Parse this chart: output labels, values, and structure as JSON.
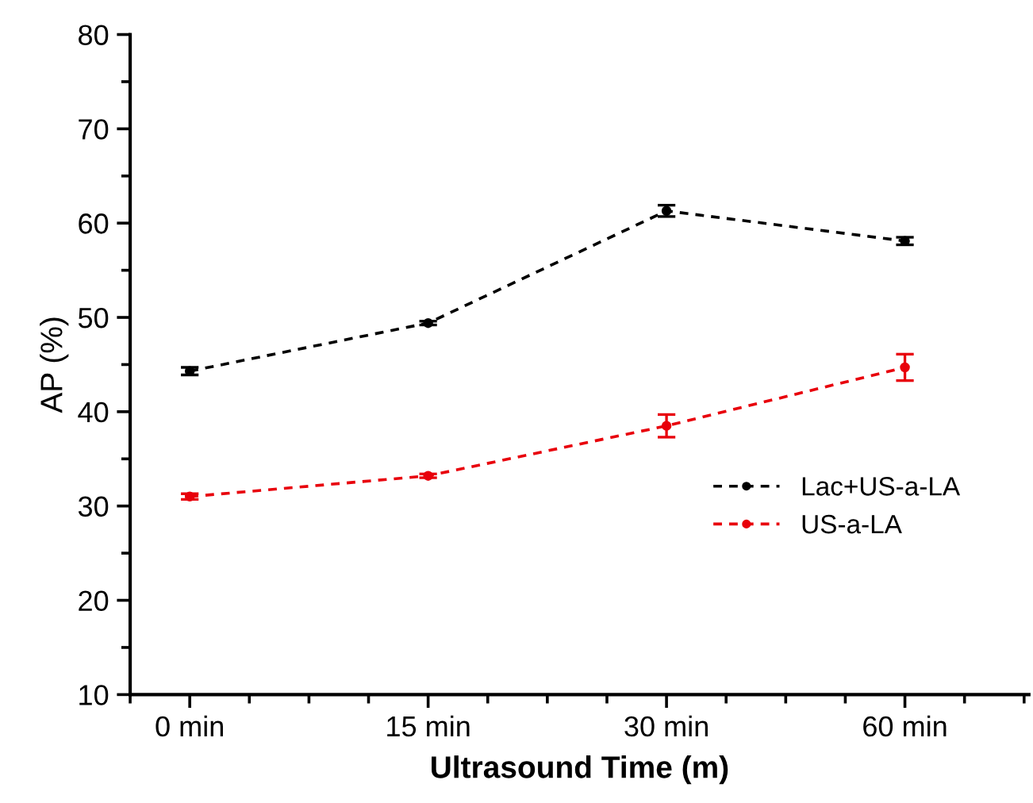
{
  "chart_data": {
    "type": "line",
    "xlabel": "Ultrasound Time (m)",
    "ylabel": "AP (%)",
    "categories": [
      "0 min",
      "15 min",
      "30 min",
      "60 min"
    ],
    "series": [
      {
        "name": "Lac+US-a-LA",
        "color": "#000000",
        "values": [
          44.3,
          49.4,
          61.3,
          58.1
        ],
        "errors": [
          0.4,
          0.2,
          0.6,
          0.4
        ]
      },
      {
        "name": "US-a-LA",
        "color": "#e8000b",
        "values": [
          31.0,
          33.2,
          38.5,
          44.7
        ],
        "errors": [
          0.3,
          0.2,
          1.2,
          1.4
        ]
      }
    ],
    "ylim": [
      10,
      80
    ],
    "yticks": [
      10,
      20,
      30,
      40,
      50,
      60,
      70,
      80
    ],
    "grid": false,
    "legend": "lower right",
    "marker": "circle",
    "line_style": "dashed"
  }
}
